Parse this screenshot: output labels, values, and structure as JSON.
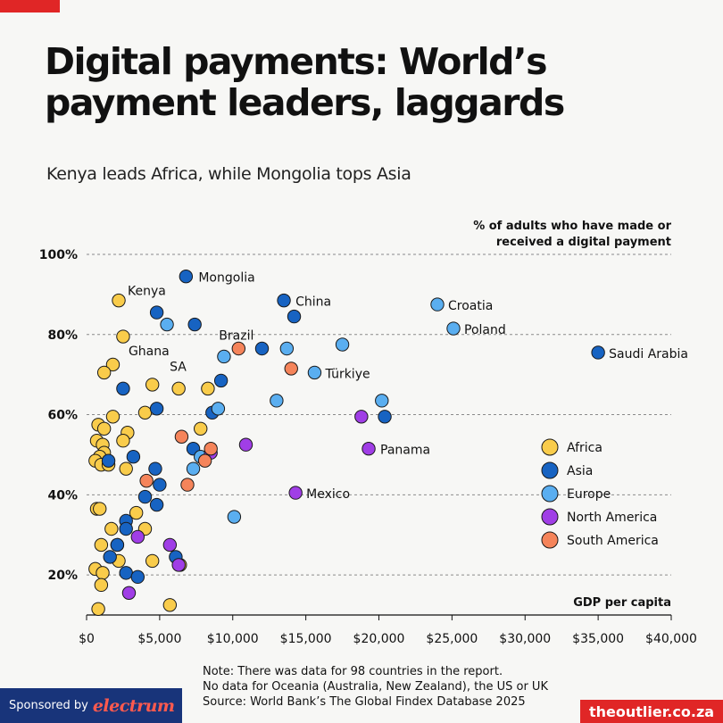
{
  "header": {
    "title": "Digital payments: World’s payment leaders, laggards",
    "subtitle": "Kenya leads Africa, while Mongolia tops Asia"
  },
  "footer": {
    "notes": [
      "Note: There was data for 98 countries in the report.",
      "No data for Oceania (Australia, New Zealand), the US or UK",
      "Source: World Bank’s The Global Findex Database 2025"
    ],
    "sponsor_text": "Sponsored by",
    "sponsor_logo": "electrum",
    "brand": "theoutlier.co.za"
  },
  "chart_data": {
    "type": "scatter",
    "ylabel": "% of adults who have made or received a digital payment",
    "xlabel": "GDP per capita",
    "xlim": [
      0,
      40000
    ],
    "ylim": [
      10,
      100
    ],
    "xticks": [
      0,
      5000,
      10000,
      15000,
      20000,
      25000,
      30000,
      35000,
      40000
    ],
    "xtick_labels": [
      "$0",
      "$5,000",
      "$10,000",
      "$15,000",
      "$20,000",
      "$25,000",
      "$30,000",
      "$35,000",
      "$40,000"
    ],
    "yticks": [
      20,
      40,
      60,
      80,
      100
    ],
    "ytick_labels": [
      "20%",
      "40%",
      "60%",
      "80%",
      "100%"
    ],
    "grid": "horizontal dashed",
    "legend_position": "right",
    "series": [
      {
        "name": "Africa",
        "color": "#f9cc4b",
        "points": [
          [
            2200,
            88.5
          ],
          [
            2500,
            79.5
          ],
          [
            1800,
            72.5
          ],
          [
            1200,
            70.5
          ],
          [
            4500,
            67.5
          ],
          [
            6300,
            66.5
          ],
          [
            8300,
            66.5
          ],
          [
            1800,
            59.5
          ],
          [
            4000,
            60.5
          ],
          [
            800,
            57.5
          ],
          [
            1200,
            56.5
          ],
          [
            2800,
            55.5
          ],
          [
            7800,
            56.5
          ],
          [
            700,
            53.5
          ],
          [
            1100,
            52.5
          ],
          [
            2500,
            53.5
          ],
          [
            1200,
            50.5
          ],
          [
            900,
            49.5
          ],
          [
            600,
            48.5
          ],
          [
            1000,
            47.5
          ],
          [
            1500,
            47.5
          ],
          [
            2700,
            46.5
          ],
          [
            700,
            36.5
          ],
          [
            900,
            36.5
          ],
          [
            3400,
            35.5
          ],
          [
            1700,
            31.5
          ],
          [
            4000,
            31.5
          ],
          [
            1000,
            27.5
          ],
          [
            2100,
            27.5
          ],
          [
            4500,
            23.5
          ],
          [
            2200,
            23.5
          ],
          [
            600,
            21.5
          ],
          [
            1100,
            20.5
          ],
          [
            6400,
            22.5
          ],
          [
            1000,
            17.5
          ],
          [
            5700,
            12.5
          ],
          [
            800,
            11.5
          ]
        ]
      },
      {
        "name": "Asia",
        "color": "#1763c2",
        "points": [
          [
            6800,
            94.5
          ],
          [
            4800,
            85.5
          ],
          [
            13500,
            88.5
          ],
          [
            7400,
            82.5
          ],
          [
            14200,
            84.5
          ],
          [
            12000,
            76.5
          ],
          [
            35000,
            75.5
          ],
          [
            2500,
            66.5
          ],
          [
            9200,
            68.5
          ],
          [
            4800,
            61.5
          ],
          [
            8600,
            60.5
          ],
          [
            20400,
            59.5
          ],
          [
            7300,
            51.5
          ],
          [
            3200,
            49.5
          ],
          [
            1500,
            48.5
          ],
          [
            4700,
            46.5
          ],
          [
            5000,
            42.5
          ],
          [
            4000,
            39.5
          ],
          [
            4800,
            37.5
          ],
          [
            2700,
            33.5
          ],
          [
            2700,
            31.5
          ],
          [
            2100,
            27.5
          ],
          [
            1600,
            24.5
          ],
          [
            6100,
            24.5
          ],
          [
            2700,
            20.5
          ],
          [
            3500,
            19.5
          ]
        ]
      },
      {
        "name": "Europe",
        "color": "#5aaef0",
        "points": [
          [
            24000,
            87.5
          ],
          [
            5500,
            82.5
          ],
          [
            25100,
            81.5
          ],
          [
            17500,
            77.5
          ],
          [
            13700,
            76.5
          ],
          [
            9400,
            74.5
          ],
          [
            15600,
            70.5
          ],
          [
            13000,
            63.5
          ],
          [
            20200,
            63.5
          ],
          [
            9000,
            61.5
          ],
          [
            7800,
            49.5
          ],
          [
            7300,
            46.5
          ],
          [
            10100,
            34.5
          ]
        ]
      },
      {
        "name": "North America",
        "color": "#a03ee6",
        "points": [
          [
            18800,
            59.5
          ],
          [
            10900,
            52.5
          ],
          [
            19300,
            51.5
          ],
          [
            8500,
            50.5
          ],
          [
            14300,
            40.5
          ],
          [
            3500,
            29.5
          ],
          [
            5700,
            27.5
          ],
          [
            6300,
            22.5
          ],
          [
            2900,
            15.5
          ]
        ]
      },
      {
        "name": "South America",
        "color": "#f5845a",
        "points": [
          [
            10400,
            76.5
          ],
          [
            14000,
            71.5
          ],
          [
            6500,
            54.5
          ],
          [
            8500,
            51.5
          ],
          [
            8100,
            48.5
          ],
          [
            4100,
            43.5
          ],
          [
            6900,
            42.5
          ]
        ]
      }
    ],
    "annotations": [
      {
        "text": "Mongolia",
        "x": 6800,
        "y": 94.5
      },
      {
        "text": "Kenya",
        "x": 2200,
        "y": 88.5
      },
      {
        "text": "China",
        "x": 13500,
        "y": 88.5
      },
      {
        "text": "Croatia",
        "x": 24000,
        "y": 87.5
      },
      {
        "text": "Poland",
        "x": 25100,
        "y": 81.5
      },
      {
        "text": "Brazil",
        "x": 10400,
        "y": 76.5
      },
      {
        "text": "Ghana",
        "x": 2500,
        "y": 79.5
      },
      {
        "text": "Saudi Arabia",
        "x": 35000,
        "y": 75.5
      },
      {
        "text": "SA",
        "x": 6300,
        "y": 66.5
      },
      {
        "text": "Türkiye",
        "x": 15600,
        "y": 70.5
      },
      {
        "text": "Panama",
        "x": 19300,
        "y": 51.5
      },
      {
        "text": "Mexico",
        "x": 14300,
        "y": 40.5
      }
    ]
  }
}
